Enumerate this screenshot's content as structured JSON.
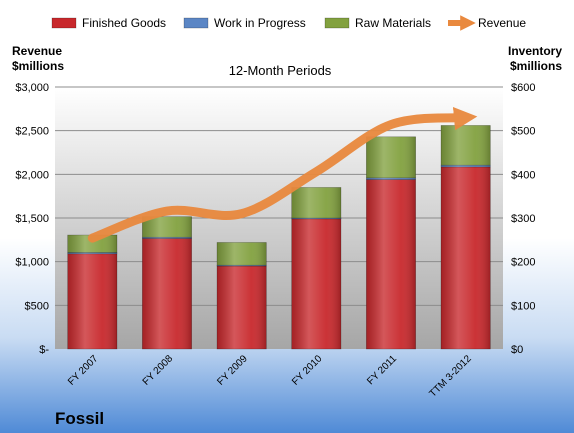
{
  "chart_data": {
    "type": "bar",
    "stacked": true,
    "subtitle": "12-Month Periods",
    "company": "Fossil",
    "left_axis": {
      "label_line1": "Revenue",
      "label_line2": "$millions",
      "ylim": [
        0,
        3000
      ],
      "tick_values": [
        0,
        500,
        1000,
        1500,
        2000,
        2500,
        3000
      ],
      "tick_labels": [
        "$-",
        "$500",
        "$1,000",
        "$1,500",
        "$2,000",
        "$2,500",
        "$3,000"
      ]
    },
    "right_axis": {
      "label_line1": "Inventory",
      "label_line2": "$millions",
      "ylim": [
        0,
        600
      ],
      "tick_values": [
        0,
        100,
        200,
        300,
        400,
        500,
        600
      ],
      "tick_labels": [
        "$0",
        "$100",
        "$200",
        "$300",
        "$400",
        "$500",
        "$600"
      ]
    },
    "categories": [
      "FY 2007",
      "FY 2008",
      "FY 2009",
      "FY 2010",
      "FY 2011",
      "TTM 3-2012"
    ],
    "series": [
      {
        "name": "Finished Goods",
        "axis": "right",
        "kind": "bar",
        "color": "#c8282c",
        "values": [
          218,
          253,
          190,
          298,
          388,
          417
        ]
      },
      {
        "name": "Work in Progress",
        "axis": "right",
        "kind": "bar",
        "color": "#5b86c5",
        "values": [
          3,
          3,
          2,
          2,
          4,
          4
        ]
      },
      {
        "name": "Raw Materials",
        "axis": "right",
        "kind": "bar",
        "color": "#82a13f",
        "values": [
          40,
          47,
          52,
          70,
          94,
          91
        ]
      },
      {
        "name": "Revenue",
        "axis": "left",
        "kind": "line",
        "color": "#e9893e",
        "values": [
          1270,
          1580,
          1550,
          2030,
          2570,
          2650
        ]
      }
    ],
    "grid": true,
    "legend_placement": "top"
  }
}
